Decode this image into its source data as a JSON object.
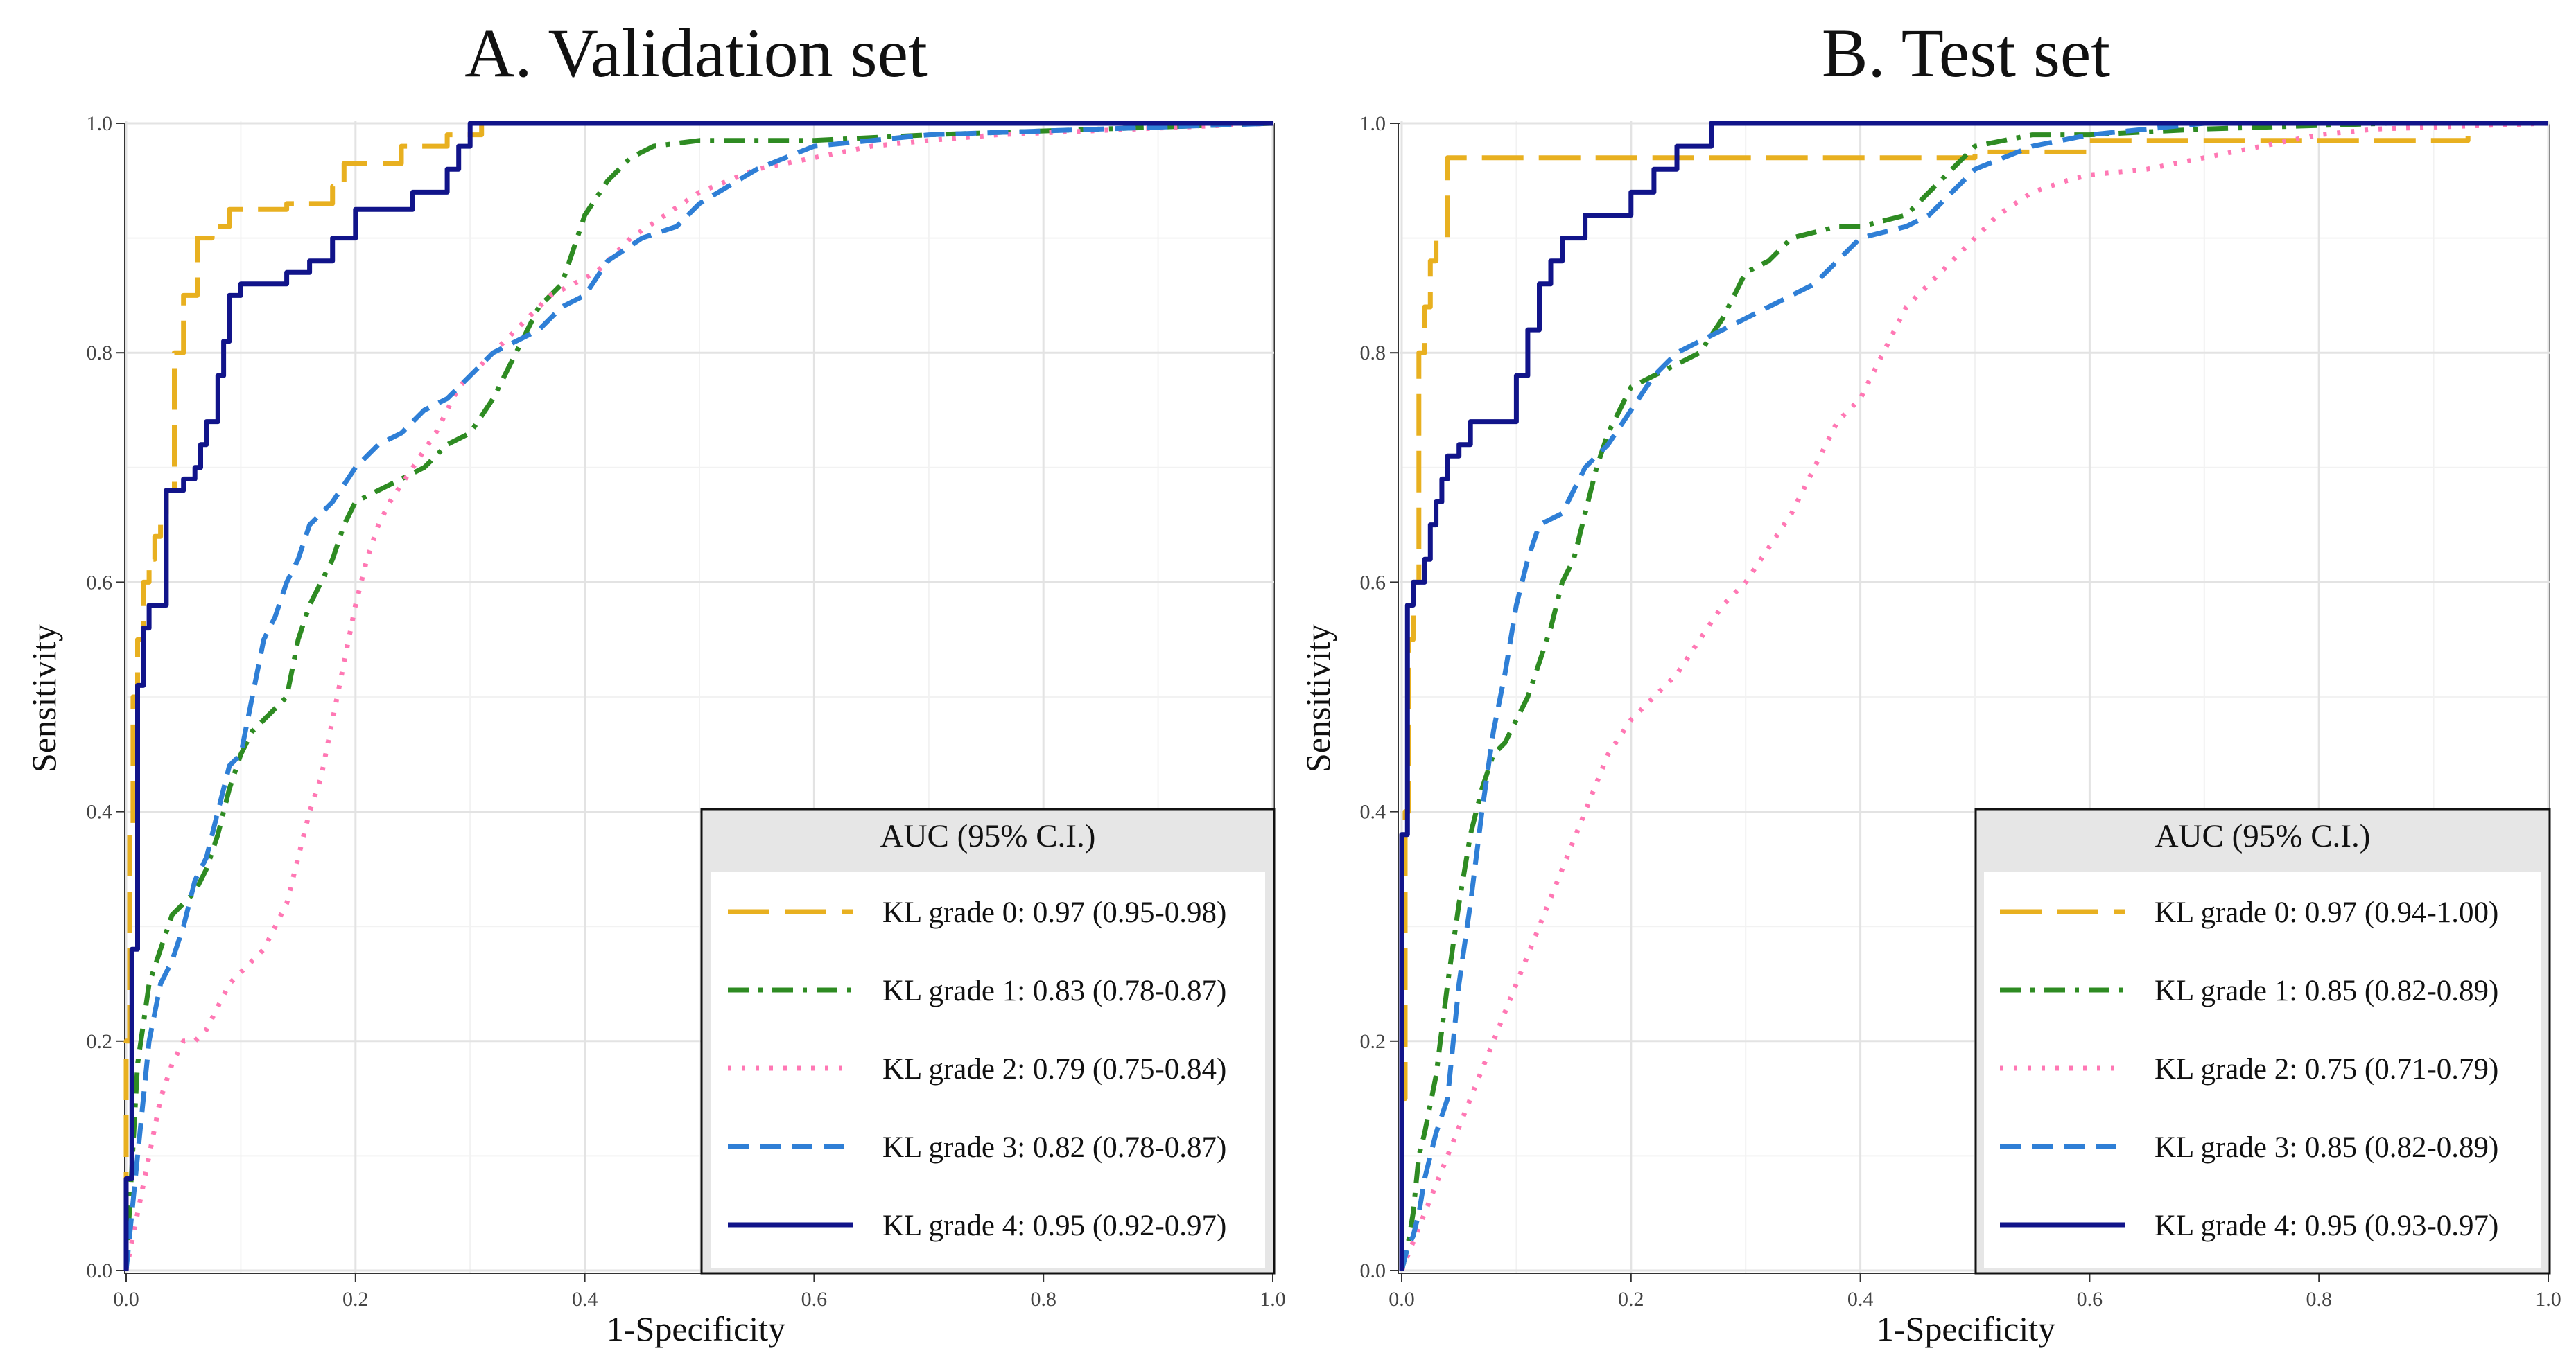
{
  "chart_data": [
    {
      "type": "line",
      "title": "A. Validation set",
      "xlabel": "1-Specificity",
      "ylabel": "Sensitivity",
      "xlim": [
        0,
        1
      ],
      "ylim": [
        0,
        1
      ],
      "xticks": [
        "0.0",
        "0.2",
        "0.4",
        "0.6",
        "0.8",
        "1.0"
      ],
      "yticks": [
        "0.0",
        "0.2",
        "0.4",
        "0.6",
        "0.8",
        "1.0"
      ],
      "grid": true,
      "legend_title": "AUC (95% C.I.)",
      "legend_position": "bottom-right",
      "series": [
        {
          "name": "KL grade 0: 0.97 (0.95-0.98)",
          "color": "#E8B020",
          "dash": "longdash",
          "x": [
            0,
            0,
            0.003,
            0.003,
            0.006,
            0.006,
            0.01,
            0.01,
            0.015,
            0.015,
            0.02,
            0.02,
            0.025,
            0.025,
            0.03,
            0.03,
            0.035,
            0.035,
            0.042,
            0.042,
            0.05,
            0.05,
            0.062,
            0.062,
            0.075,
            0.075,
            0.09,
            0.09,
            0.14,
            0.14,
            0.18,
            0.18,
            0.19,
            0.19,
            0.24,
            0.24,
            0.28,
            0.28,
            0.31,
            0.31,
            0.6,
            0.75,
            1.0
          ],
          "y": [
            0,
            0.2,
            0.2,
            0.38,
            0.38,
            0.5,
            0.5,
            0.55,
            0.55,
            0.6,
            0.6,
            0.62,
            0.62,
            0.64,
            0.64,
            0.66,
            0.66,
            0.68,
            0.68,
            0.8,
            0.8,
            0.85,
            0.85,
            0.9,
            0.9,
            0.91,
            0.91,
            0.925,
            0.925,
            0.93,
            0.93,
            0.945,
            0.945,
            0.965,
            0.965,
            0.98,
            0.98,
            0.99,
            0.99,
            1.0,
            1.0,
            1.0,
            1.0
          ]
        },
        {
          "name": "KL grade 1: 0.83 (0.78-0.87)",
          "color": "#2E8B22",
          "dash": "dotdash",
          "x": [
            0,
            0.01,
            0.02,
            0.03,
            0.04,
            0.05,
            0.06,
            0.07,
            0.08,
            0.09,
            0.1,
            0.11,
            0.12,
            0.14,
            0.15,
            0.16,
            0.17,
            0.18,
            0.19,
            0.2,
            0.22,
            0.24,
            0.26,
            0.28,
            0.3,
            0.32,
            0.34,
            0.36,
            0.38,
            0.4,
            0.42,
            0.44,
            0.46,
            0.5,
            0.55,
            0.6,
            0.7,
            1.0
          ],
          "y": [
            0,
            0.18,
            0.25,
            0.28,
            0.31,
            0.32,
            0.33,
            0.35,
            0.38,
            0.42,
            0.45,
            0.47,
            0.48,
            0.5,
            0.55,
            0.58,
            0.6,
            0.62,
            0.65,
            0.67,
            0.68,
            0.69,
            0.7,
            0.72,
            0.73,
            0.76,
            0.8,
            0.84,
            0.86,
            0.92,
            0.95,
            0.97,
            0.98,
            0.985,
            0.985,
            0.985,
            0.99,
            1.0
          ]
        },
        {
          "name": "KL grade 2: 0.79 (0.75-0.84)",
          "color": "#FF78B4",
          "dash": "dotted",
          "x": [
            0,
            0.01,
            0.02,
            0.03,
            0.04,
            0.05,
            0.06,
            0.07,
            0.08,
            0.09,
            0.1,
            0.12,
            0.14,
            0.15,
            0.16,
            0.17,
            0.18,
            0.19,
            0.2,
            0.21,
            0.22,
            0.23,
            0.25,
            0.27,
            0.29,
            0.31,
            0.33,
            0.35,
            0.37,
            0.39,
            0.41,
            0.44,
            0.47,
            0.5,
            0.55,
            0.6,
            0.65,
            0.7,
            0.76,
            1.0
          ],
          "y": [
            0,
            0.05,
            0.1,
            0.15,
            0.18,
            0.2,
            0.2,
            0.21,
            0.23,
            0.25,
            0.26,
            0.28,
            0.32,
            0.36,
            0.4,
            0.43,
            0.48,
            0.53,
            0.58,
            0.62,
            0.65,
            0.67,
            0.7,
            0.73,
            0.77,
            0.79,
            0.81,
            0.83,
            0.85,
            0.86,
            0.87,
            0.9,
            0.92,
            0.94,
            0.96,
            0.97,
            0.98,
            0.985,
            0.99,
            1.0
          ]
        },
        {
          "name": "KL grade 3: 0.82 (0.78-0.87)",
          "color": "#2F7FD6",
          "dash": "dashed",
          "x": [
            0,
            0.01,
            0.015,
            0.02,
            0.03,
            0.04,
            0.05,
            0.06,
            0.07,
            0.08,
            0.09,
            0.1,
            0.11,
            0.12,
            0.13,
            0.14,
            0.15,
            0.16,
            0.18,
            0.2,
            0.22,
            0.24,
            0.26,
            0.28,
            0.3,
            0.32,
            0.34,
            0.36,
            0.38,
            0.4,
            0.42,
            0.45,
            0.48,
            0.5,
            0.55,
            0.6,
            0.7,
            1.0
          ],
          "y": [
            0,
            0.1,
            0.15,
            0.2,
            0.25,
            0.27,
            0.3,
            0.34,
            0.36,
            0.4,
            0.44,
            0.45,
            0.5,
            0.55,
            0.57,
            0.6,
            0.62,
            0.65,
            0.67,
            0.7,
            0.72,
            0.73,
            0.75,
            0.76,
            0.78,
            0.8,
            0.81,
            0.82,
            0.84,
            0.85,
            0.88,
            0.9,
            0.91,
            0.93,
            0.96,
            0.98,
            0.99,
            1.0
          ]
        },
        {
          "name": "KL grade 4: 0.95 (0.92-0.97)",
          "color": "#11148A",
          "dash": "solid",
          "x": [
            0,
            0,
            0.005,
            0.005,
            0.01,
            0.01,
            0.015,
            0.015,
            0.02,
            0.02,
            0.035,
            0.035,
            0.05,
            0.05,
            0.06,
            0.06,
            0.065,
            0.065,
            0.07,
            0.07,
            0.08,
            0.08,
            0.085,
            0.085,
            0.09,
            0.09,
            0.1,
            0.1,
            0.14,
            0.14,
            0.16,
            0.16,
            0.18,
            0.18,
            0.2,
            0.2,
            0.25,
            0.25,
            0.28,
            0.28,
            0.29,
            0.29,
            0.3,
            0.3,
            0.4,
            0.6,
            1.0
          ],
          "y": [
            0,
            0.08,
            0.08,
            0.28,
            0.28,
            0.51,
            0.51,
            0.56,
            0.56,
            0.58,
            0.58,
            0.68,
            0.68,
            0.69,
            0.69,
            0.7,
            0.7,
            0.72,
            0.72,
            0.74,
            0.74,
            0.78,
            0.78,
            0.81,
            0.81,
            0.85,
            0.85,
            0.86,
            0.86,
            0.87,
            0.87,
            0.88,
            0.88,
            0.9,
            0.9,
            0.925,
            0.925,
            0.94,
            0.94,
            0.96,
            0.96,
            0.98,
            0.98,
            1.0,
            1.0,
            1.0,
            1.0
          ]
        }
      ]
    },
    {
      "type": "line",
      "title": "B. Test set",
      "xlabel": "1-Specificity",
      "ylabel": "Sensitivity",
      "xlim": [
        0,
        1
      ],
      "ylim": [
        0,
        1
      ],
      "xticks": [
        "0.0",
        "0.2",
        "0.4",
        "0.6",
        "0.8",
        "1.0"
      ],
      "yticks": [
        "0.0",
        "0.2",
        "0.4",
        "0.6",
        "0.8",
        "1.0"
      ],
      "grid": true,
      "legend_title": "AUC (95% C.I.)",
      "legend_position": "bottom-right",
      "series": [
        {
          "name": "KL grade 0: 0.97 (0.94-1.00)",
          "color": "#E8B020",
          "dash": "longdash",
          "x": [
            0,
            0,
            0.003,
            0.003,
            0.006,
            0.006,
            0.01,
            0.01,
            0.015,
            0.015,
            0.02,
            0.02,
            0.025,
            0.025,
            0.03,
            0.03,
            0.04,
            0.04,
            0.5,
            0.5,
            0.6,
            0.6,
            0.93,
            0.93,
            1.0
          ],
          "y": [
            0,
            0.15,
            0.15,
            0.4,
            0.4,
            0.55,
            0.55,
            0.6,
            0.6,
            0.8,
            0.8,
            0.84,
            0.84,
            0.88,
            0.88,
            0.9,
            0.9,
            0.97,
            0.97,
            0.975,
            0.975,
            0.985,
            0.985,
            1.0,
            1.0
          ]
        },
        {
          "name": "KL grade 1: 0.85 (0.82-0.89)",
          "color": "#2E8B22",
          "dash": "dotdash",
          "x": [
            0,
            0.005,
            0.01,
            0.015,
            0.02,
            0.03,
            0.04,
            0.05,
            0.06,
            0.07,
            0.08,
            0.09,
            0.1,
            0.11,
            0.12,
            0.13,
            0.14,
            0.15,
            0.16,
            0.17,
            0.18,
            0.19,
            0.2,
            0.22,
            0.24,
            0.26,
            0.28,
            0.3,
            0.32,
            0.34,
            0.36,
            0.38,
            0.4,
            0.42,
            0.44,
            0.46,
            0.48,
            0.5,
            0.55,
            0.6,
            0.7,
            0.86,
            1.0
          ],
          "y": [
            0,
            0.02,
            0.05,
            0.1,
            0.12,
            0.17,
            0.25,
            0.32,
            0.38,
            0.42,
            0.45,
            0.46,
            0.48,
            0.5,
            0.53,
            0.56,
            0.6,
            0.62,
            0.66,
            0.7,
            0.73,
            0.75,
            0.77,
            0.78,
            0.79,
            0.8,
            0.83,
            0.87,
            0.88,
            0.9,
            0.905,
            0.91,
            0.91,
            0.915,
            0.92,
            0.94,
            0.96,
            0.98,
            0.99,
            0.99,
            0.995,
            1.0,
            1.0
          ]
        },
        {
          "name": "KL grade 2: 0.75 (0.71-0.79)",
          "color": "#FF78B4",
          "dash": "dotted",
          "x": [
            0,
            0.02,
            0.04,
            0.06,
            0.08,
            0.1,
            0.12,
            0.14,
            0.16,
            0.18,
            0.2,
            0.22,
            0.24,
            0.26,
            0.28,
            0.3,
            0.32,
            0.34,
            0.36,
            0.38,
            0.4,
            0.42,
            0.44,
            0.46,
            0.48,
            0.5,
            0.52,
            0.55,
            0.58,
            0.6,
            0.65,
            0.7,
            0.75,
            0.8,
            0.85,
            1.0
          ],
          "y": [
            0,
            0.05,
            0.1,
            0.15,
            0.2,
            0.25,
            0.3,
            0.35,
            0.4,
            0.45,
            0.48,
            0.5,
            0.52,
            0.55,
            0.58,
            0.6,
            0.63,
            0.66,
            0.7,
            0.74,
            0.76,
            0.8,
            0.84,
            0.86,
            0.88,
            0.9,
            0.92,
            0.94,
            0.95,
            0.955,
            0.96,
            0.97,
            0.98,
            0.99,
            0.995,
            1.0
          ]
        },
        {
          "name": "KL grade 3: 0.85 (0.82-0.89)",
          "color": "#2F7FD6",
          "dash": "dashed",
          "x": [
            0,
            0.005,
            0.01,
            0.015,
            0.02,
            0.03,
            0.04,
            0.05,
            0.06,
            0.07,
            0.08,
            0.09,
            0.1,
            0.11,
            0.12,
            0.14,
            0.16,
            0.18,
            0.2,
            0.22,
            0.24,
            0.26,
            0.28,
            0.3,
            0.32,
            0.34,
            0.36,
            0.38,
            0.4,
            0.42,
            0.44,
            0.46,
            0.48,
            0.5,
            0.55,
            0.6,
            0.65,
            0.7,
            1.0
          ],
          "y": [
            0,
            0.02,
            0.03,
            0.05,
            0.08,
            0.12,
            0.15,
            0.25,
            0.32,
            0.4,
            0.47,
            0.52,
            0.58,
            0.62,
            0.65,
            0.66,
            0.7,
            0.72,
            0.75,
            0.78,
            0.8,
            0.81,
            0.82,
            0.83,
            0.84,
            0.85,
            0.86,
            0.88,
            0.9,
            0.905,
            0.91,
            0.92,
            0.94,
            0.96,
            0.98,
            0.99,
            0.995,
            1.0,
            1.0
          ]
        },
        {
          "name": "KL grade 4: 0.95 (0.93-0.97)",
          "color": "#11148A",
          "dash": "solid",
          "x": [
            0,
            0,
            0.005,
            0.005,
            0.01,
            0.01,
            0.02,
            0.02,
            0.025,
            0.025,
            0.03,
            0.03,
            0.035,
            0.035,
            0.04,
            0.04,
            0.05,
            0.05,
            0.06,
            0.06,
            0.1,
            0.1,
            0.11,
            0.11,
            0.12,
            0.12,
            0.13,
            0.13,
            0.14,
            0.14,
            0.16,
            0.16,
            0.2,
            0.2,
            0.22,
            0.22,
            0.24,
            0.24,
            0.27,
            0.27,
            0.28,
            0.28,
            0.5,
            1.0
          ],
          "y": [
            0,
            0.38,
            0.38,
            0.58,
            0.58,
            0.6,
            0.6,
            0.62,
            0.62,
            0.65,
            0.65,
            0.67,
            0.67,
            0.69,
            0.69,
            0.71,
            0.71,
            0.72,
            0.72,
            0.74,
            0.74,
            0.78,
            0.78,
            0.82,
            0.82,
            0.86,
            0.86,
            0.88,
            0.88,
            0.9,
            0.9,
            0.92,
            0.92,
            0.94,
            0.94,
            0.96,
            0.96,
            0.98,
            0.98,
            1.0,
            1.0,
            1.0,
            1.0,
            1.0
          ]
        }
      ]
    }
  ]
}
